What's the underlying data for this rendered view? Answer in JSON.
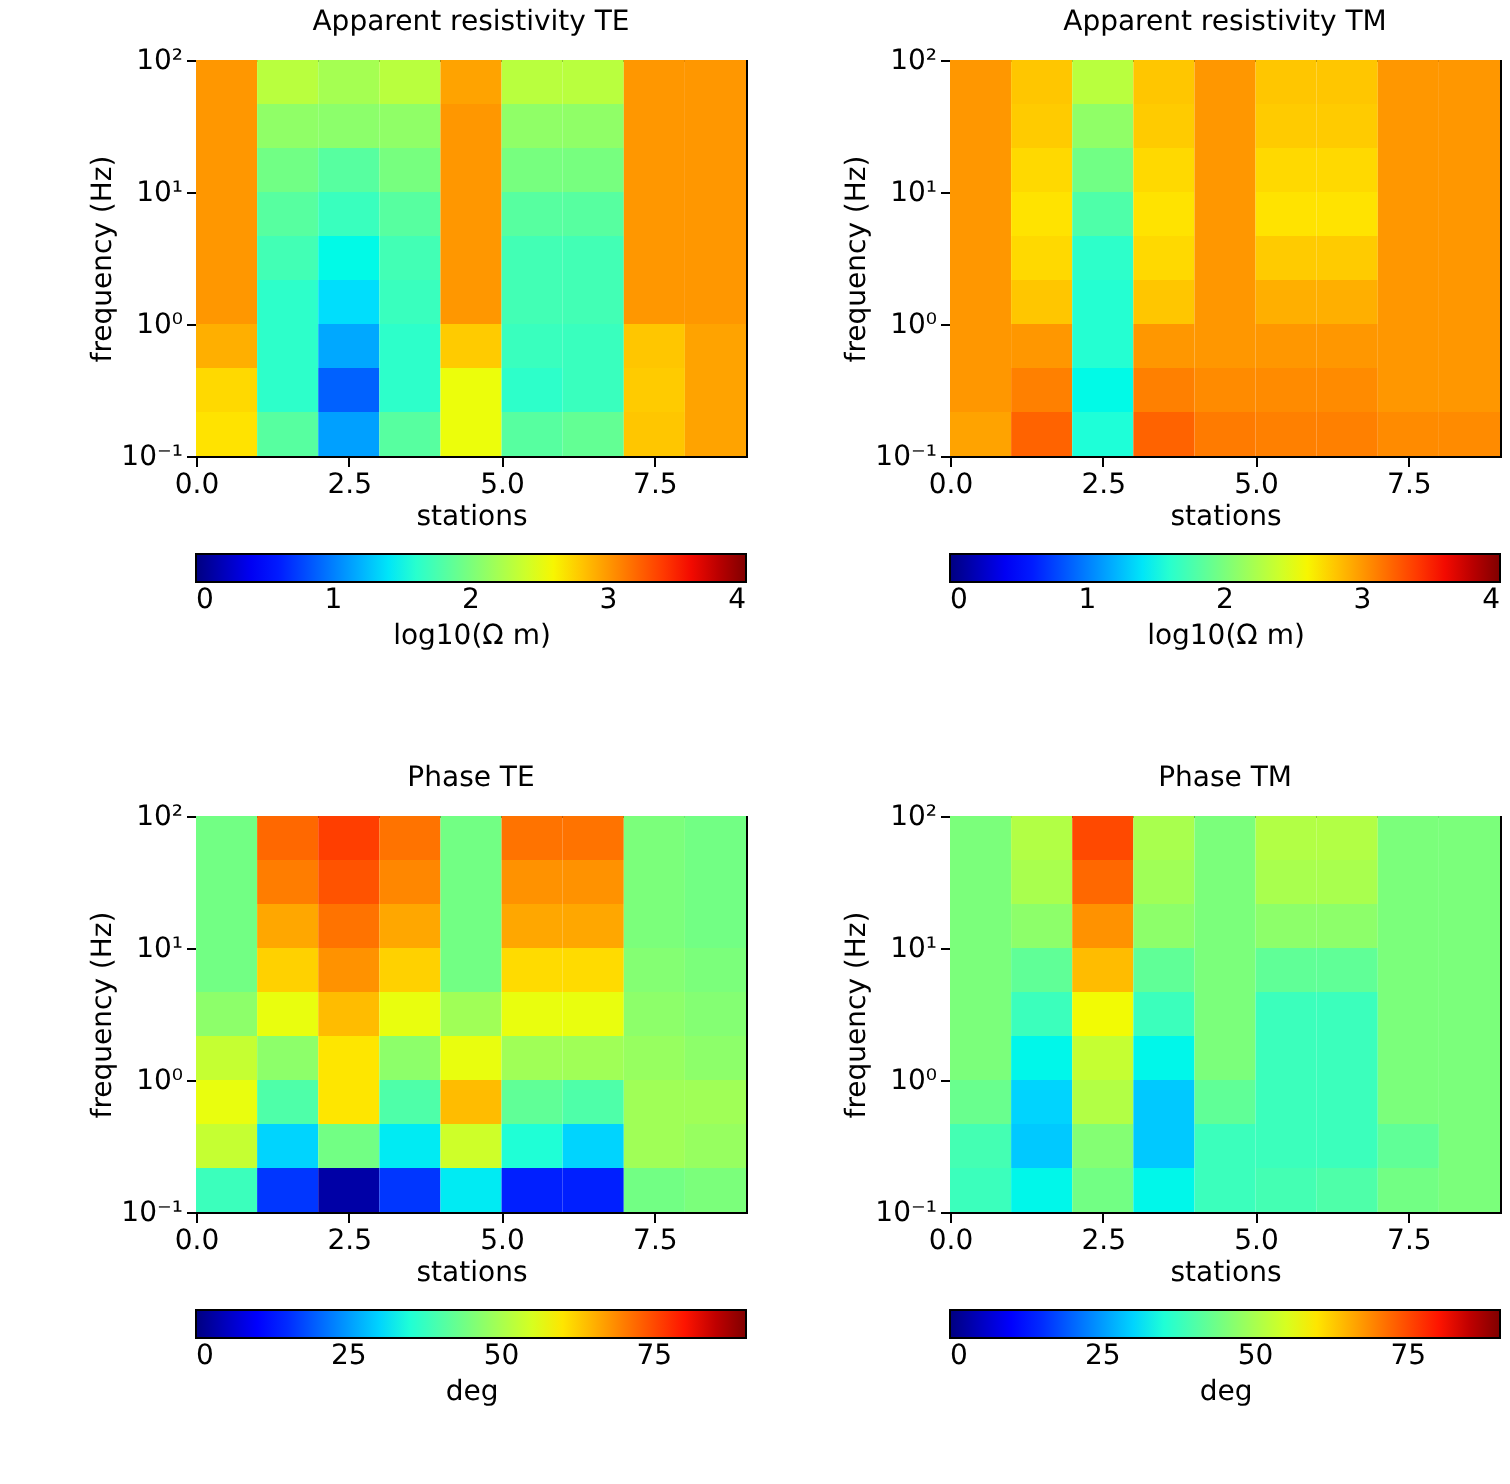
{
  "chart_data": [
    {
      "type": "heatmap",
      "title": "Apparent resistivity TE",
      "xlabel": "stations",
      "ylabel": "frequency (Hz)",
      "clabel": "log10(Ω m)",
      "log": "y",
      "xlim": [
        0,
        9
      ],
      "xticks": [
        {
          "value": 0,
          "label": "0.0"
        },
        {
          "value": 2.5,
          "label": "2.5"
        },
        {
          "value": 5,
          "label": "5.0"
        },
        {
          "value": 7.5,
          "label": "7.5"
        }
      ],
      "ylim": [
        0.1,
        100
      ],
      "yticks": [
        {
          "value": 0.1,
          "label": "10⁻¹"
        },
        {
          "value": 1,
          "label": "10⁰"
        },
        {
          "value": 10,
          "label": "10¹"
        },
        {
          "value": 100,
          "label": "10²"
        }
      ],
      "clim": [
        0,
        4
      ],
      "cticks": [
        0,
        1,
        2,
        3,
        4
      ],
      "cells": [
        [
          3.0,
          2.3,
          2.2,
          2.3,
          2.95,
          2.3,
          2.3,
          3.0,
          3.0
        ],
        [
          3.0,
          2.1,
          2.08,
          2.1,
          3.0,
          2.1,
          2.1,
          3.0,
          3.0
        ],
        [
          3.0,
          1.95,
          1.82,
          1.98,
          3.0,
          1.98,
          1.98,
          3.0,
          3.0
        ],
        [
          3.0,
          1.82,
          1.68,
          1.82,
          3.0,
          1.82,
          1.82,
          3.0,
          3.0
        ],
        [
          3.0,
          1.72,
          1.48,
          1.72,
          3.0,
          1.72,
          1.72,
          3.0,
          3.0
        ],
        [
          3.0,
          1.62,
          1.37,
          1.68,
          3.0,
          1.72,
          1.72,
          3.0,
          3.0
        ],
        [
          2.9,
          1.62,
          1.16,
          1.62,
          2.78,
          1.68,
          1.68,
          2.8,
          2.95
        ],
        [
          2.72,
          1.62,
          0.88,
          1.62,
          2.55,
          1.62,
          1.68,
          2.78,
          2.95
        ],
        [
          2.68,
          1.82,
          1.13,
          1.82,
          2.55,
          1.82,
          1.88,
          2.8,
          2.95
        ]
      ]
    },
    {
      "type": "heatmap",
      "title": "Apparent resistivity TM",
      "xlabel": "stations",
      "ylabel": "frequency (Hz)",
      "clabel": "log10(Ω m)",
      "log": "y",
      "xlim": [
        0,
        9
      ],
      "xticks": [
        {
          "value": 0,
          "label": "0.0"
        },
        {
          "value": 2.5,
          "label": "2.5"
        },
        {
          "value": 5,
          "label": "5.0"
        },
        {
          "value": 7.5,
          "label": "7.5"
        }
      ],
      "ylim": [
        0.1,
        100
      ],
      "yticks": [
        {
          "value": 0.1,
          "label": "10⁻¹"
        },
        {
          "value": 1,
          "label": "10⁰"
        },
        {
          "value": 10,
          "label": "10¹"
        },
        {
          "value": 100,
          "label": "10²"
        }
      ],
      "clim": [
        0,
        4
      ],
      "cticks": [
        0,
        1,
        2,
        3,
        4
      ],
      "cells": [
        [
          3.0,
          2.8,
          2.3,
          2.8,
          3.0,
          2.8,
          2.8,
          3.0,
          3.0
        ],
        [
          3.0,
          2.78,
          2.1,
          2.78,
          3.0,
          2.78,
          2.78,
          3.0,
          3.0
        ],
        [
          3.0,
          2.72,
          1.95,
          2.72,
          3.0,
          2.72,
          2.72,
          3.0,
          3.0
        ],
        [
          3.0,
          2.68,
          1.78,
          2.68,
          3.0,
          2.68,
          2.68,
          3.0,
          3.0
        ],
        [
          3.0,
          2.72,
          1.62,
          2.72,
          3.0,
          2.78,
          2.78,
          3.0,
          3.0
        ],
        [
          3.0,
          2.8,
          1.58,
          2.8,
          3.0,
          2.9,
          2.9,
          3.0,
          3.0
        ],
        [
          3.0,
          3.0,
          1.58,
          3.0,
          3.0,
          3.0,
          3.0,
          3.0,
          3.0
        ],
        [
          3.0,
          3.1,
          1.48,
          3.1,
          3.05,
          3.05,
          3.05,
          3.0,
          3.0
        ],
        [
          2.95,
          3.22,
          1.55,
          3.22,
          3.12,
          3.1,
          3.1,
          3.05,
          3.05
        ]
      ]
    },
    {
      "type": "heatmap",
      "title": "Phase TE",
      "xlabel": "stations",
      "ylabel": "frequency (Hz)",
      "clabel": "deg",
      "log": "y",
      "xlim": [
        0,
        9
      ],
      "xticks": [
        {
          "value": 0,
          "label": "0.0"
        },
        {
          "value": 2.5,
          "label": "2.5"
        },
        {
          "value": 5,
          "label": "5.0"
        },
        {
          "value": 7.5,
          "label": "7.5"
        }
      ],
      "ylim": [
        0.1,
        100
      ],
      "yticks": [
        {
          "value": 0.1,
          "label": "10⁻¹"
        },
        {
          "value": 1,
          "label": "10⁰"
        },
        {
          "value": 10,
          "label": "10¹"
        },
        {
          "value": 100,
          "label": "10²"
        }
      ],
      "clim": [
        0,
        90
      ],
      "cticks": [
        0,
        25,
        50,
        75
      ],
      "cells": [
        [
          44,
          72,
          76,
          71,
          44,
          71,
          71,
          45,
          44
        ],
        [
          44,
          70,
          74,
          69,
          44,
          68,
          68,
          45,
          44
        ],
        [
          44,
          66,
          71,
          66,
          44,
          66,
          66,
          45,
          44
        ],
        [
          44,
          62,
          68,
          62,
          44,
          61,
          61,
          46,
          45
        ],
        [
          47,
          57,
          64,
          57,
          49,
          57,
          57,
          47,
          46
        ],
        [
          53,
          47,
          60,
          47,
          57,
          49,
          49,
          48,
          47
        ],
        [
          57,
          40,
          60,
          40,
          64,
          42,
          40,
          49,
          49
        ],
        [
          53,
          30,
          44,
          32,
          54,
          35,
          30,
          49,
          48
        ],
        [
          38,
          16,
          3,
          16,
          32,
          14,
          14,
          44,
          45
        ]
      ]
    },
    {
      "type": "heatmap",
      "title": "Phase TM",
      "xlabel": "stations",
      "ylabel": "frequency (Hz)",
      "clabel": "deg",
      "log": "y",
      "xlim": [
        0,
        9
      ],
      "xticks": [
        {
          "value": 0,
          "label": "0.0"
        },
        {
          "value": 2.5,
          "label": "2.5"
        },
        {
          "value": 5,
          "label": "5.0"
        },
        {
          "value": 7.5,
          "label": "7.5"
        }
      ],
      "ylim": [
        0.1,
        100
      ],
      "yticks": [
        {
          "value": 0.1,
          "label": "10⁻¹"
        },
        {
          "value": 1,
          "label": "10⁰"
        },
        {
          "value": 10,
          "label": "10¹"
        },
        {
          "value": 100,
          "label": "10²"
        }
      ],
      "clim": [
        0,
        90
      ],
      "cticks": [
        0,
        25,
        50,
        75
      ],
      "cells": [
        [
          45,
          51,
          75,
          50,
          45,
          51,
          51,
          45,
          45
        ],
        [
          45,
          50,
          72,
          49,
          45,
          50,
          50,
          45,
          45
        ],
        [
          45,
          47,
          68,
          47,
          45,
          47,
          47,
          45,
          45
        ],
        [
          45,
          42,
          64,
          42,
          45,
          42,
          42,
          45,
          45
        ],
        [
          45,
          38,
          58,
          38,
          45,
          38,
          38,
          45,
          45
        ],
        [
          45,
          33,
          53,
          33,
          45,
          38,
          38,
          45,
          45
        ],
        [
          43,
          30,
          51,
          29,
          42,
          38,
          38,
          45,
          45
        ],
        [
          39,
          29,
          46,
          29,
          38,
          38,
          38,
          42,
          45
        ],
        [
          38,
          33,
          44,
          33,
          38,
          39,
          40,
          44,
          45
        ]
      ]
    }
  ]
}
